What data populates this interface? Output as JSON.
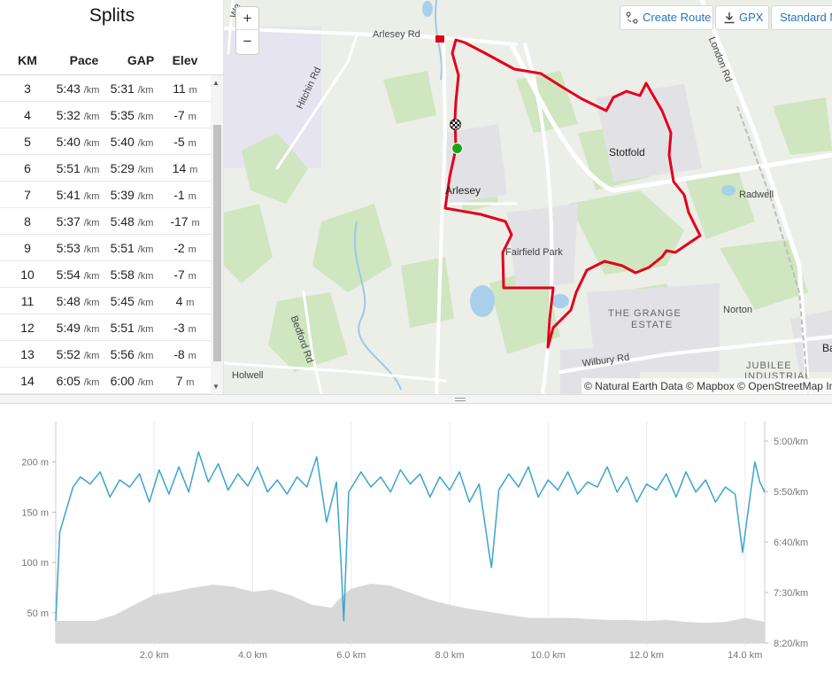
{
  "splits": {
    "title": "Splits",
    "columns": [
      "KM",
      "Pace",
      "GAP",
      "Elev"
    ],
    "rows": [
      {
        "km": "3",
        "pace": "5:43",
        "gap": "5:31",
        "elev": "11"
      },
      {
        "km": "4",
        "pace": "5:32",
        "gap": "5:35",
        "elev": "-7"
      },
      {
        "km": "5",
        "pace": "5:40",
        "gap": "5:40",
        "elev": "-5"
      },
      {
        "km": "6",
        "pace": "5:51",
        "gap": "5:29",
        "elev": "14"
      },
      {
        "km": "7",
        "pace": "5:41",
        "gap": "5:39",
        "elev": "-1"
      },
      {
        "km": "8",
        "pace": "5:37",
        "gap": "5:48",
        "elev": "-17"
      },
      {
        "km": "9",
        "pace": "5:53",
        "gap": "5:51",
        "elev": "-2"
      },
      {
        "km": "10",
        "pace": "5:54",
        "gap": "5:58",
        "elev": "-7"
      },
      {
        "km": "11",
        "pace": "5:48",
        "gap": "5:45",
        "elev": "4"
      },
      {
        "km": "12",
        "pace": "5:49",
        "gap": "5:51",
        "elev": "-3"
      },
      {
        "km": "13",
        "pace": "5:52",
        "gap": "5:56",
        "elev": "-8"
      },
      {
        "km": "14",
        "pace": "6:05",
        "gap": "6:00",
        "elev": "7"
      }
    ],
    "pace_unit": "/km",
    "elev_unit": "m"
  },
  "map": {
    "zoom_in": "+",
    "zoom_out": "−",
    "create_route": "Create Route",
    "gpx": "GPX",
    "style": "Standard M",
    "attribution": "© Natural Earth Data © Mapbox © OpenStreetMap Im",
    "labels": {
      "arlesey_rd": "Arlesey Rd",
      "hitchin_rd": "Hitchin Rd",
      "london_rd": "London Rd",
      "stotfold": "Stotfold",
      "arlesey": "Arlesey",
      "radwell": "Radwell",
      "fairfield_park": "Fairfield Park",
      "grange_estate_1": "THE GRANGE",
      "grange_estate_2": "ESTATE",
      "norton": "Norton",
      "bedford_rd": "Bedford Rd",
      "wilbury_rd": "Wilbury Rd",
      "holwell": "Holwell",
      "jubilee_1": "JUBILEE",
      "jubilee_2": "INDUSTRIAL",
      "ba": "Ba",
      "we": "We"
    },
    "route_color": "#e3001b",
    "start_color": "#1fa317"
  },
  "chart_data": {
    "type": "area",
    "x_unit": "km",
    "xlim": [
      0,
      14.4
    ],
    "x_ticks": [
      "2.0 km",
      "4.0 km",
      "6.0 km",
      "8.0 km",
      "10.0 km",
      "12.0 km",
      "14.0 km"
    ],
    "y_left_ticks": [
      "200 m",
      "150 m",
      "100 m",
      "50 m"
    ],
    "y_left_range_m": [
      20,
      240
    ],
    "y_right_ticks": [
      "5:00/km",
      "5:50/km",
      "6:40/km",
      "7:30/km",
      "8:20/km"
    ],
    "series": [
      {
        "kind": "elevation",
        "color": "#d8d8d8",
        "x": [
          0,
          0.8,
          1.2,
          1.6,
          2.0,
          2.4,
          2.8,
          3.2,
          3.6,
          4.0,
          4.4,
          4.8,
          5.2,
          5.6,
          5.8,
          6.0,
          6.4,
          6.8,
          7.2,
          7.6,
          8.0,
          8.4,
          8.8,
          9.2,
          9.6,
          10.0,
          10.4,
          10.8,
          11.2,
          11.6,
          12.0,
          12.4,
          12.8,
          13.2,
          13.6,
          14.0,
          14.4
        ],
        "y_m": [
          42,
          42,
          48,
          58,
          68,
          71,
          75,
          78,
          76,
          71,
          73,
          67,
          58,
          55,
          66,
          74,
          79,
          77,
          70,
          63,
          58,
          54,
          51,
          48,
          45,
          45,
          45,
          44,
          43,
          43,
          42,
          43,
          41,
          40,
          41,
          45,
          41
        ]
      },
      {
        "kind": "pace",
        "color": "#3ba3cf",
        "x": [
          0,
          0.08,
          0.2,
          0.35,
          0.5,
          0.7,
          0.9,
          1.1,
          1.3,
          1.5,
          1.7,
          1.9,
          2.1,
          2.3,
          2.5,
          2.7,
          2.9,
          3.1,
          3.3,
          3.5,
          3.7,
          3.9,
          4.1,
          4.3,
          4.5,
          4.7,
          4.9,
          5.1,
          5.3,
          5.5,
          5.7,
          5.8,
          5.85,
          5.95,
          6.2,
          6.4,
          6.6,
          6.8,
          7.0,
          7.2,
          7.4,
          7.6,
          7.8,
          8.0,
          8.2,
          8.4,
          8.6,
          8.8,
          8.85,
          9.0,
          9.2,
          9.4,
          9.6,
          9.8,
          10.0,
          10.2,
          10.4,
          10.6,
          10.8,
          11.0,
          11.2,
          11.4,
          11.6,
          11.8,
          12.0,
          12.2,
          12.4,
          12.6,
          12.8,
          13.0,
          13.2,
          13.4,
          13.6,
          13.8,
          13.95,
          14.1,
          14.2,
          14.3,
          14.4
        ],
        "y_m": [
          42,
          130,
          150,
          175,
          185,
          178,
          190,
          165,
          182,
          175,
          188,
          160,
          192,
          168,
          195,
          170,
          210,
          180,
          198,
          172,
          188,
          176,
          195,
          170,
          182,
          168,
          185,
          175,
          205,
          140,
          180,
          95,
          42,
          170,
          190,
          175,
          185,
          170,
          192,
          178,
          188,
          165,
          185,
          172,
          190,
          160,
          178,
          110,
          95,
          172,
          188,
          175,
          195,
          165,
          182,
          172,
          190,
          168,
          180,
          175,
          195,
          170,
          185,
          160,
          178,
          172,
          188,
          165,
          190,
          170,
          182,
          160,
          175,
          168,
          110,
          165,
          200,
          180,
          170
        ]
      }
    ]
  }
}
